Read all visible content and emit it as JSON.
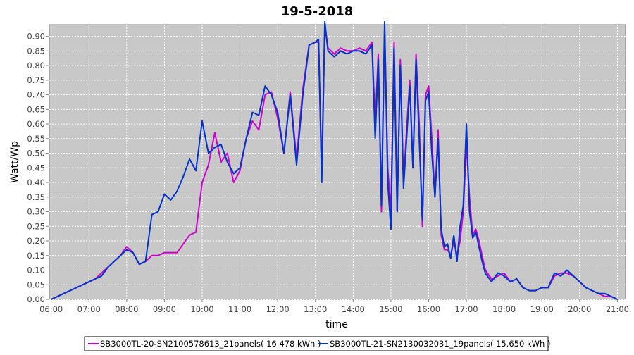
{
  "chart_data": {
    "type": "line",
    "title": "19-5-2018",
    "xlabel": "time",
    "ylabel": "Watt/Wp",
    "xlim": [
      "05:57",
      "21:13"
    ],
    "ylim": [
      0,
      0.94
    ],
    "x_ticks": [
      "06:00",
      "07:00",
      "08:00",
      "09:00",
      "10:00",
      "11:00",
      "12:00",
      "13:00",
      "14:00",
      "15:00",
      "16:00",
      "17:00",
      "18:00",
      "19:00",
      "20:00",
      "21:00"
    ],
    "y_ticks": [
      "0.00",
      "0.05",
      "0.10",
      "0.15",
      "0.20",
      "0.25",
      "0.30",
      "0.35",
      "0.40",
      "0.45",
      "0.50",
      "0.55",
      "0.60",
      "0.65",
      "0.70",
      "0.75",
      "0.80",
      "0.85",
      "0.90"
    ],
    "grid": true,
    "legend_position": "bottom",
    "plot_background": "#c8c8c8",
    "series": [
      {
        "name": "SB3000TL-20-SN2100578613_21panels( 16.478 kWh )",
        "color": "#cc00cc",
        "x": [
          "06:00",
          "06:10",
          "06:20",
          "06:30",
          "06:40",
          "06:50",
          "07:00",
          "07:10",
          "07:20",
          "07:30",
          "07:40",
          "07:50",
          "08:00",
          "08:10",
          "08:20",
          "08:30",
          "08:40",
          "08:50",
          "09:00",
          "09:10",
          "09:20",
          "09:30",
          "09:40",
          "09:50",
          "10:00",
          "10:10",
          "10:20",
          "10:30",
          "10:40",
          "10:50",
          "11:00",
          "11:10",
          "11:20",
          "11:30",
          "11:40",
          "11:50",
          "12:00",
          "12:10",
          "12:20",
          "12:30",
          "12:40",
          "12:50",
          "13:00",
          "13:05",
          "13:10",
          "13:15",
          "13:20",
          "13:30",
          "13:40",
          "13:50",
          "14:00",
          "14:10",
          "14:20",
          "14:30",
          "14:35",
          "14:40",
          "14:45",
          "14:50",
          "14:55",
          "15:00",
          "15:05",
          "15:10",
          "15:15",
          "15:20",
          "15:25",
          "15:30",
          "15:35",
          "15:40",
          "15:45",
          "15:50",
          "15:55",
          "16:00",
          "16:05",
          "16:10",
          "16:15",
          "16:20",
          "16:25",
          "16:30",
          "16:35",
          "16:40",
          "16:45",
          "16:50",
          "16:55",
          "17:00",
          "17:05",
          "17:10",
          "17:15",
          "17:20",
          "17:25",
          "17:30",
          "17:40",
          "17:50",
          "18:00",
          "18:10",
          "18:20",
          "18:30",
          "18:40",
          "18:50",
          "19:00",
          "19:10",
          "19:20",
          "19:30",
          "19:40",
          "19:50",
          "20:00",
          "20:10",
          "20:20",
          "20:30",
          "20:40",
          "20:50",
          "21:00"
        ],
        "values": [
          0.0,
          0.01,
          0.02,
          0.03,
          0.04,
          0.05,
          0.06,
          0.07,
          0.09,
          0.11,
          0.13,
          0.15,
          0.18,
          0.16,
          0.12,
          0.13,
          0.15,
          0.15,
          0.16,
          0.16,
          0.16,
          0.19,
          0.22,
          0.23,
          0.4,
          0.46,
          0.57,
          0.47,
          0.5,
          0.4,
          0.44,
          0.55,
          0.61,
          0.58,
          0.7,
          0.71,
          0.62,
          0.5,
          0.71,
          0.48,
          0.72,
          0.87,
          0.88,
          0.88,
          0.44,
          0.93,
          0.86,
          0.84,
          0.86,
          0.85,
          0.85,
          0.86,
          0.85,
          0.88,
          0.6,
          0.84,
          0.3,
          0.92,
          0.45,
          0.3,
          0.88,
          0.3,
          0.82,
          0.4,
          0.58,
          0.75,
          0.45,
          0.84,
          0.6,
          0.25,
          0.7,
          0.73,
          0.55,
          0.35,
          0.58,
          0.22,
          0.17,
          0.17,
          0.15,
          0.2,
          0.15,
          0.2,
          0.3,
          0.53,
          0.35,
          0.22,
          0.24,
          0.2,
          0.15,
          0.1,
          0.07,
          0.08,
          0.09,
          0.06,
          0.07,
          0.04,
          0.03,
          0.03,
          0.04,
          0.04,
          0.08,
          0.09,
          0.09,
          0.08,
          0.06,
          0.04,
          0.03,
          0.02,
          0.01,
          0.01,
          0.0
        ]
      },
      {
        "name": "SB3000TL-21-SN2130032031_19panels( 15.650 kWh )",
        "color": "#0033cc",
        "x": [
          "06:00",
          "06:10",
          "06:20",
          "06:30",
          "06:40",
          "06:50",
          "07:00",
          "07:10",
          "07:20",
          "07:30",
          "07:40",
          "07:50",
          "08:00",
          "08:10",
          "08:20",
          "08:30",
          "08:40",
          "08:50",
          "09:00",
          "09:10",
          "09:20",
          "09:30",
          "09:40",
          "09:50",
          "10:00",
          "10:10",
          "10:20",
          "10:30",
          "10:40",
          "10:50",
          "11:00",
          "11:10",
          "11:20",
          "11:30",
          "11:40",
          "11:50",
          "12:00",
          "12:10",
          "12:20",
          "12:30",
          "12:40",
          "12:50",
          "13:00",
          "13:05",
          "13:10",
          "13:15",
          "13:20",
          "13:30",
          "13:40",
          "13:50",
          "14:00",
          "14:10",
          "14:20",
          "14:30",
          "14:35",
          "14:40",
          "14:45",
          "14:50",
          "14:55",
          "15:00",
          "15:05",
          "15:10",
          "15:15",
          "15:20",
          "15:25",
          "15:30",
          "15:35",
          "15:40",
          "15:45",
          "15:50",
          "15:55",
          "16:00",
          "16:05",
          "16:10",
          "16:15",
          "16:20",
          "16:25",
          "16:30",
          "16:35",
          "16:40",
          "16:45",
          "16:50",
          "16:55",
          "17:00",
          "17:05",
          "17:10",
          "17:15",
          "17:20",
          "17:25",
          "17:30",
          "17:40",
          "17:50",
          "18:00",
          "18:10",
          "18:20",
          "18:30",
          "18:40",
          "18:50",
          "19:00",
          "19:10",
          "19:20",
          "19:30",
          "19:40",
          "19:50",
          "20:00",
          "20:10",
          "20:20",
          "20:30",
          "20:40",
          "20:50",
          "21:00"
        ],
        "values": [
          0.0,
          0.01,
          0.02,
          0.03,
          0.04,
          0.05,
          0.06,
          0.07,
          0.08,
          0.11,
          0.13,
          0.15,
          0.17,
          0.16,
          0.12,
          0.13,
          0.29,
          0.3,
          0.36,
          0.34,
          0.37,
          0.42,
          0.48,
          0.44,
          0.61,
          0.5,
          0.52,
          0.53,
          0.47,
          0.43,
          0.45,
          0.55,
          0.64,
          0.63,
          0.73,
          0.7,
          0.64,
          0.5,
          0.7,
          0.46,
          0.7,
          0.87,
          0.88,
          0.89,
          0.4,
          0.95,
          0.85,
          0.83,
          0.85,
          0.84,
          0.85,
          0.85,
          0.84,
          0.87,
          0.55,
          0.82,
          0.32,
          0.95,
          0.4,
          0.24,
          0.86,
          0.3,
          0.8,
          0.38,
          0.55,
          0.73,
          0.45,
          0.82,
          0.55,
          0.27,
          0.68,
          0.71,
          0.5,
          0.35,
          0.55,
          0.24,
          0.18,
          0.19,
          0.14,
          0.22,
          0.13,
          0.25,
          0.32,
          0.6,
          0.3,
          0.21,
          0.23,
          0.18,
          0.13,
          0.09,
          0.06,
          0.09,
          0.08,
          0.06,
          0.07,
          0.04,
          0.03,
          0.03,
          0.04,
          0.04,
          0.09,
          0.08,
          0.1,
          0.08,
          0.06,
          0.04,
          0.03,
          0.02,
          0.02,
          0.01,
          0.0
        ]
      }
    ]
  }
}
